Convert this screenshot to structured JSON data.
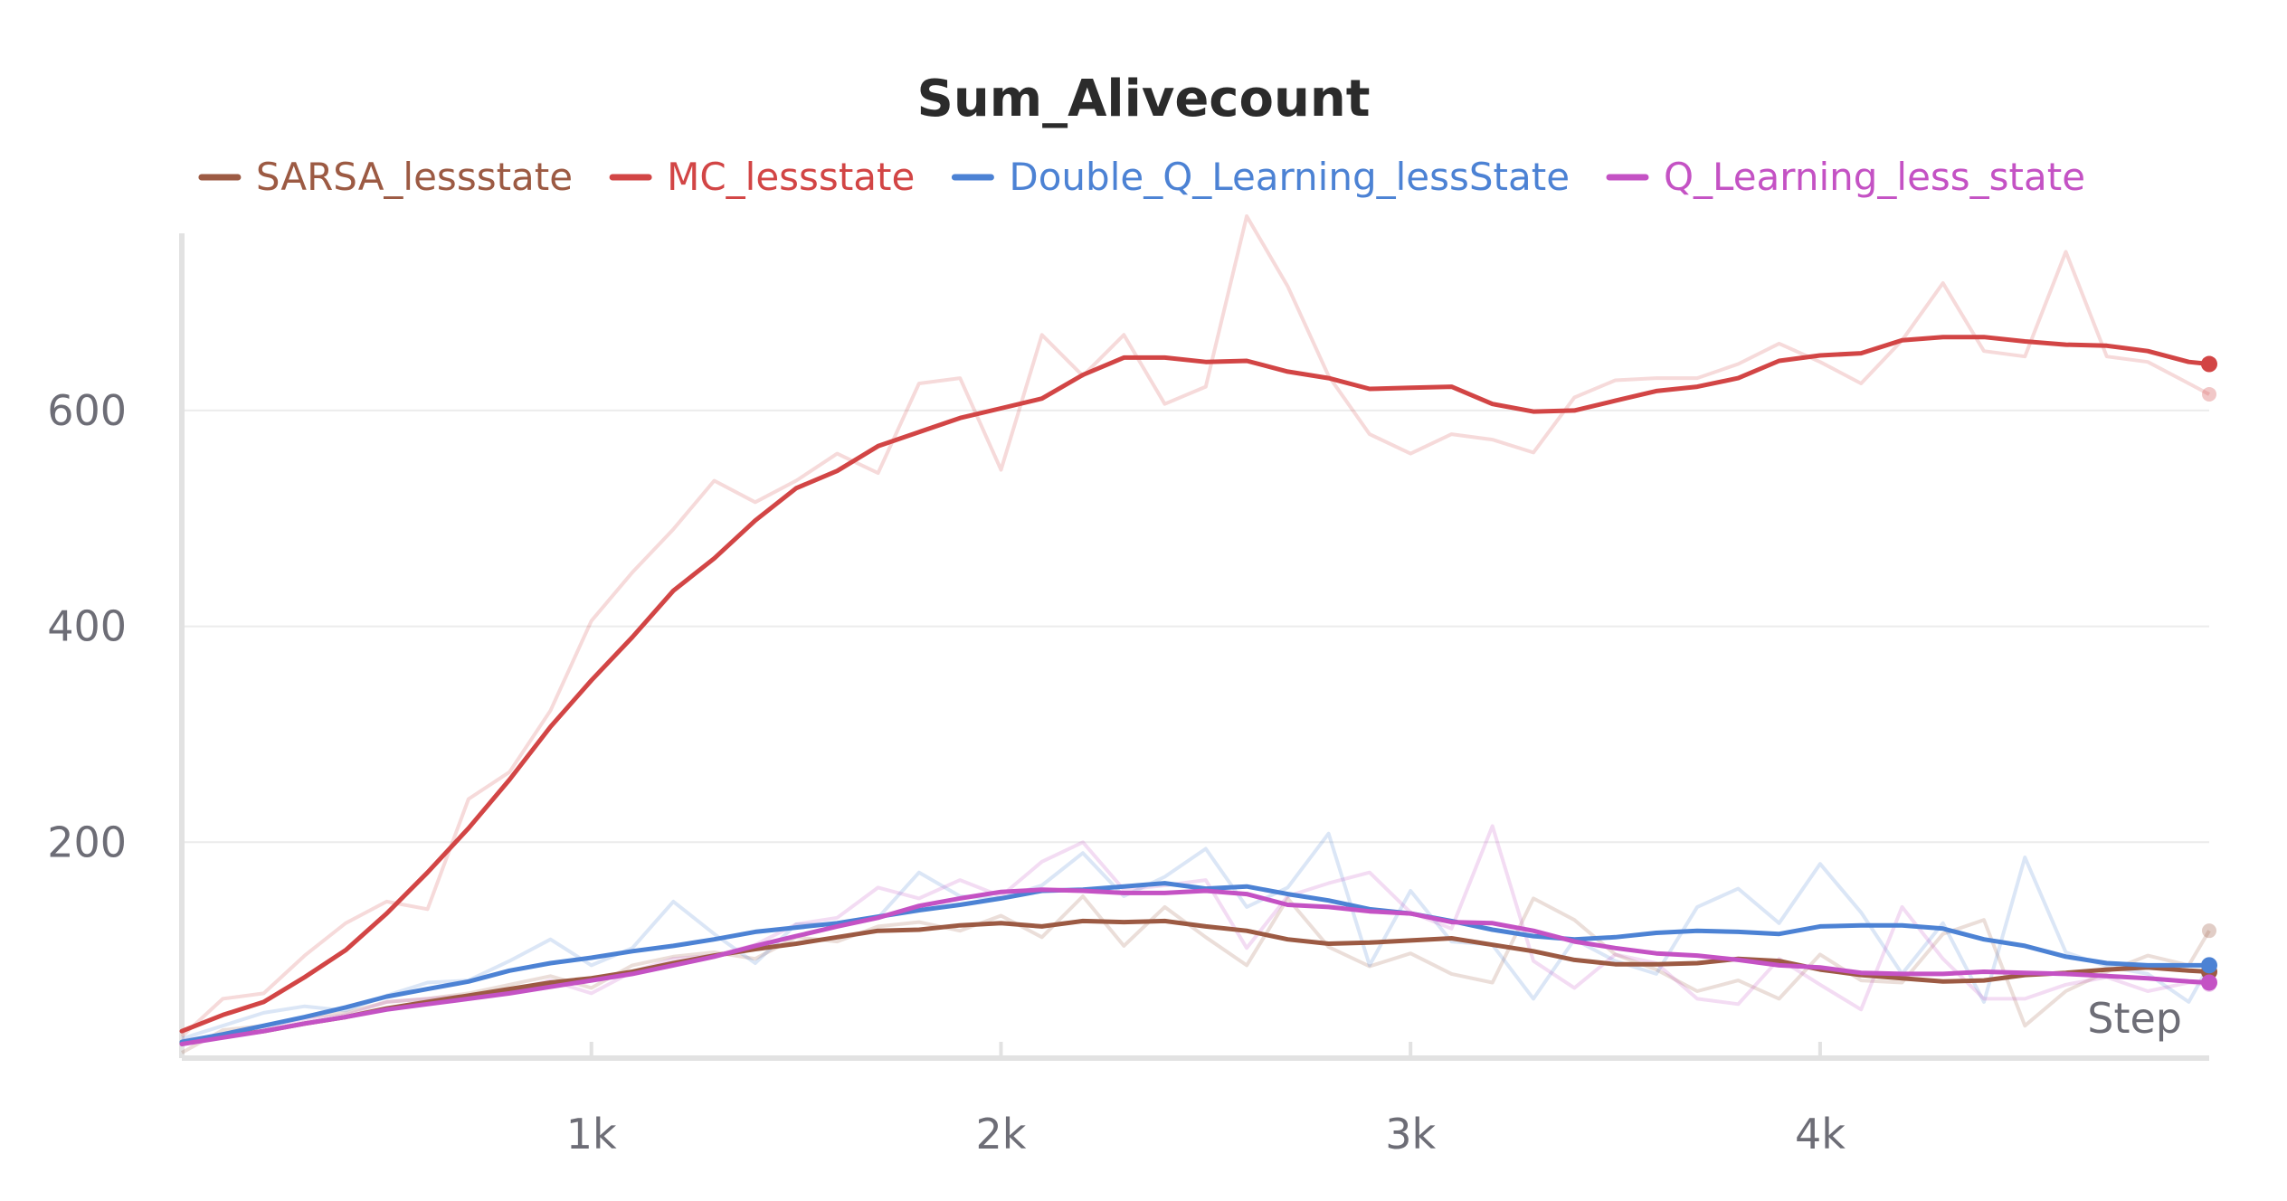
{
  "chart_data": {
    "type": "line",
    "title": "Sum_Alivecount",
    "xlabel": "Step",
    "ylabel": "",
    "xlim": [
      0,
      4950
    ],
    "ylim": [
      0,
      775
    ],
    "x_ticks": [
      {
        "value": 1000,
        "label": "1k"
      },
      {
        "value": 2000,
        "label": "2k"
      },
      {
        "value": 3000,
        "label": "3k"
      },
      {
        "value": 4000,
        "label": "4k"
      }
    ],
    "y_ticks": [
      {
        "value": 200,
        "label": "200"
      },
      {
        "value": 400,
        "label": "400"
      },
      {
        "value": 600,
        "label": "600"
      }
    ],
    "grid": true,
    "legend_position": "top",
    "x": [
      0,
      100,
      200,
      300,
      400,
      500,
      600,
      700,
      800,
      900,
      1000,
      1100,
      1200,
      1300,
      1400,
      1500,
      1600,
      1700,
      1800,
      1900,
      2000,
      2100,
      2200,
      2300,
      2400,
      2500,
      2600,
      2700,
      2800,
      2900,
      3000,
      3100,
      3200,
      3300,
      3400,
      3500,
      3600,
      3700,
      3800,
      3900,
      4000,
      4100,
      4200,
      4300,
      4400,
      4500,
      4600,
      4700,
      4800,
      4900,
      4950
    ],
    "series": [
      {
        "name": "SARSA_lessstate",
        "color": "#9c5a43",
        "smoothed": [
          14,
          20,
          25,
          32,
          38,
          46,
          52,
          58,
          64,
          70,
          74,
          80,
          88,
          95,
          101,
          106,
          112,
          118,
          119,
          123,
          125,
          122,
          127,
          126,
          127,
          122,
          118,
          110,
          106,
          107,
          109,
          111,
          105,
          99,
          91,
          87,
          87,
          88,
          92,
          90,
          82,
          77,
          74,
          71,
          72,
          77,
          79,
          82,
          84,
          81,
          80
        ],
        "raw": [
          5,
          26,
          30,
          38,
          42,
          52,
          55,
          60,
          68,
          76,
          65,
          86,
          94,
          98,
          92,
          112,
          108,
          122,
          126,
          118,
          132,
          112,
          150,
          104,
          140,
          112,
          86,
          148,
          103,
          85,
          97,
          78,
          70,
          148,
          128,
          96,
          82,
          62,
          72,
          55,
          96,
          72,
          70,
          115,
          128,
          30,
          62,
          80,
          95,
          86,
          118
        ]
      },
      {
        "name": "MC_lessstate",
        "color": "#d24545",
        "smoothed": [
          25,
          40,
          52,
          75,
          100,
          134,
          172,
          213,
          258,
          307,
          350,
          390,
          433,
          463,
          498,
          528,
          544,
          567,
          580,
          593,
          602,
          611,
          633,
          649,
          649,
          645,
          646,
          636,
          630,
          620,
          621,
          622,
          606,
          599,
          600,
          609,
          618,
          622,
          630,
          646,
          651,
          653,
          665,
          668,
          668,
          664,
          661,
          660,
          655,
          645,
          643
        ],
        "raw": [
          20,
          55,
          60,
          95,
          125,
          145,
          138,
          240,
          265,
          322,
          405,
          450,
          490,
          535,
          515,
          535,
          560,
          542,
          625,
          630,
          545,
          670,
          632,
          670,
          606,
          622,
          780,
          715,
          632,
          578,
          560,
          578,
          573,
          561,
          612,
          628,
          630,
          630,
          643,
          662,
          645,
          625,
          665,
          718,
          655,
          650,
          747,
          650,
          645,
          625,
          615
        ]
      },
      {
        "name": "Double_Q_Learning_lessState",
        "color": "#4c82d4",
        "smoothed": [
          15,
          22,
          30,
          38,
          47,
          57,
          64,
          71,
          81,
          88,
          93,
          99,
          104,
          110,
          117,
          121,
          125,
          131,
          137,
          142,
          148,
          155,
          156,
          159,
          162,
          157,
          159,
          152,
          146,
          138,
          134,
          127,
          119,
          113,
          110,
          112,
          116,
          118,
          117,
          115,
          122,
          123,
          123,
          120,
          110,
          104,
          94,
          88,
          86,
          86,
          86
        ],
        "raw": [
          18,
          30,
          42,
          48,
          44,
          58,
          70,
          72,
          90,
          110,
          86,
          102,
          145,
          115,
          88,
          124,
          124,
          130,
          172,
          150,
          148,
          160,
          190,
          150,
          168,
          194,
          140,
          158,
          208,
          86,
          155,
          108,
          105,
          55,
          110,
          90,
          78,
          140,
          157,
          125,
          180,
          135,
          78,
          125,
          52,
          186,
          98,
          85,
          78,
          52,
          86
        ]
      },
      {
        "name": "Q_Learning_less_state",
        "color": "#c452c4",
        "smoothed": [
          13,
          19,
          25,
          32,
          38,
          45,
          50,
          55,
          60,
          66,
          72,
          78,
          86,
          94,
          104,
          113,
          122,
          130,
          141,
          148,
          154,
          156,
          155,
          153,
          153,
          155,
          152,
          142,
          140,
          136,
          134,
          126,
          125,
          118,
          108,
          102,
          97,
          95,
          91,
          86,
          84,
          79,
          78,
          78,
          80,
          79,
          78,
          76,
          74,
          71,
          70
        ],
        "raw": [
          16,
          22,
          28,
          35,
          40,
          52,
          55,
          58,
          62,
          72,
          60,
          80,
          92,
          95,
          105,
          124,
          130,
          158,
          148,
          165,
          150,
          182,
          200,
          156,
          160,
          165,
          102,
          150,
          162,
          172,
          135,
          120,
          215,
          90,
          65,
          96,
          88,
          55,
          50,
          92,
          68,
          45,
          140,
          92,
          55,
          55,
          68,
          75,
          62,
          70,
          68
        ]
      }
    ]
  }
}
